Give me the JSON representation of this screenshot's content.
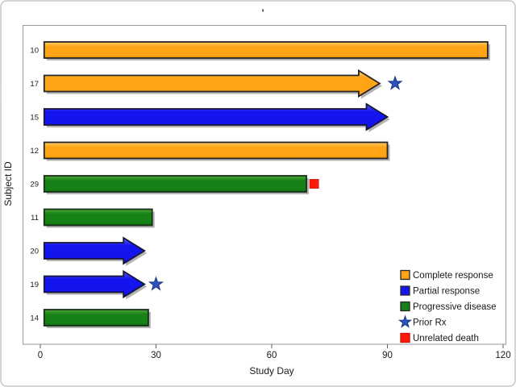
{
  "figure": {
    "background": "#ffffff",
    "border_color": "#c9c9c9"
  },
  "chart_data": {
    "type": "bar",
    "subtype": "swimmer-plot",
    "orientation": "horizontal",
    "title": "'",
    "xlabel": "Study Day",
    "ylabel": "Subject ID",
    "xlim": [
      0,
      120
    ],
    "xticks": [
      0,
      30,
      60,
      90,
      120
    ],
    "grid": false,
    "legend_position": "inside bottom-right",
    "bar_start_day": 1,
    "categories": [
      "10",
      "17",
      "15",
      "12",
      "29",
      "11",
      "20",
      "19",
      "14"
    ],
    "subjects": [
      {
        "id": "10",
        "response": "Complete response",
        "end_day": 116,
        "ongoing_arrow": false
      },
      {
        "id": "17",
        "response": "Complete response",
        "end_day": 88,
        "ongoing_arrow": true,
        "prior_rx_day": 92
      },
      {
        "id": "15",
        "response": "Partial response",
        "end_day": 90,
        "ongoing_arrow": true
      },
      {
        "id": "12",
        "response": "Complete response",
        "end_day": 90,
        "ongoing_arrow": false
      },
      {
        "id": "29",
        "response": "Progressive disease",
        "end_day": 69,
        "ongoing_arrow": false,
        "death_day": 71
      },
      {
        "id": "11",
        "response": "Progressive disease",
        "end_day": 29,
        "ongoing_arrow": false
      },
      {
        "id": "20",
        "response": "Partial response",
        "end_day": 27,
        "ongoing_arrow": true
      },
      {
        "id": "19",
        "response": "Partial response",
        "end_day": 27,
        "ongoing_arrow": true,
        "prior_rx_day": 30
      },
      {
        "id": "14",
        "response": "Progressive disease",
        "end_day": 28,
        "ongoing_arrow": false
      }
    ],
    "legend": [
      {
        "label": "Complete response",
        "marker": "square",
        "key": "complete"
      },
      {
        "label": "Partial response",
        "marker": "square",
        "key": "partial"
      },
      {
        "label": "Progressive disease",
        "marker": "square",
        "key": "progressive"
      },
      {
        "label": "Prior Rx",
        "marker": "star",
        "key": "prior_rx"
      },
      {
        "label": "Unrelated death",
        "marker": "square",
        "key": "death"
      }
    ],
    "colors": {
      "complete": {
        "fill": "#FFA414",
        "light": "#FFCC6A",
        "dark": "#EE9400",
        "edge": "#262626"
      },
      "partial": {
        "fill": "#1414EE",
        "light": "#5A5AFF",
        "dark": "#0D0DC0",
        "edge": "#161636"
      },
      "progressive": {
        "fill": "#178017",
        "light": "#4EA838",
        "dark": "#0F6210",
        "edge": "#17301A"
      },
      "prior_rx": {
        "fill": "#2B52BE",
        "edge": "#16377F"
      },
      "death": {
        "fill": "#FF190A",
        "edge": "#CC0F06"
      },
      "axis_text": "#1a1a1a",
      "frame": "#9a9a9a",
      "tick": "#616161",
      "shadow": "#b3b3b3"
    },
    "response_key_map": {
      "Complete response": "complete",
      "Partial response": "partial",
      "Progressive disease": "progressive"
    }
  }
}
